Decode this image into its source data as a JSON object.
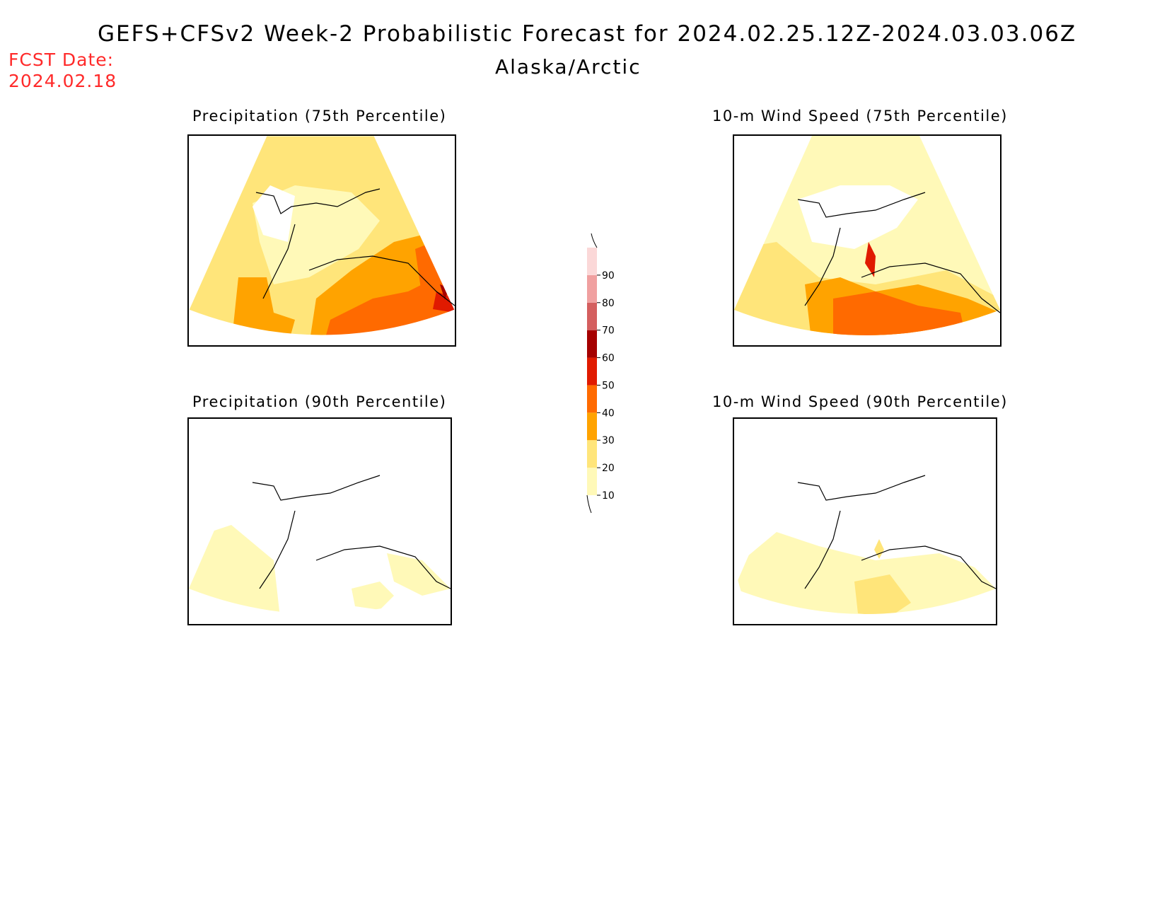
{
  "header": {
    "title": "GEFS+CFSv2 Week-2 Probabilistic Forecast for 2024.02.25.12Z-2024.03.03.06Z",
    "region": "Alaska/Arctic",
    "fcst_label": "FCST Date:",
    "fcst_date": "2024.02.18"
  },
  "panels": [
    {
      "id": "precip75",
      "title": "Precipitation (75th Percentile)"
    },
    {
      "id": "wind75",
      "title": "10-m Wind Speed (75th Percentile)"
    },
    {
      "id": "precip90",
      "title": "Precipitation (90th Percentile)"
    },
    {
      "id": "wind90",
      "title": "10-m Wind Speed (90th Percentile)"
    }
  ],
  "colorbar": {
    "levels": [
      "10",
      "20",
      "30",
      "40",
      "50",
      "60",
      "70",
      "80",
      "90"
    ],
    "colors": [
      "#fff9b8",
      "#ffe57a",
      "#ffa300",
      "#ff6a00",
      "#e01a00",
      "#a50000",
      "#d45f5f",
      "#f0a0a0",
      "#fbd8d8"
    ]
  }
}
